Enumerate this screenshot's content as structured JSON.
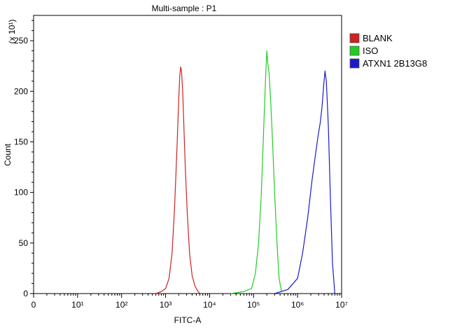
{
  "chart_data": {
    "type": "line",
    "title": "Multi-sample : P1",
    "xlabel": "FITC-A",
    "ylabel": "Count",
    "y_multiplier_label": "(x 10¹)",
    "x_scale": "log",
    "xlim": [
      1,
      10000000
    ],
    "ylim": [
      0,
      275
    ],
    "x_ticks": [
      {
        "value": 1,
        "label": "0"
      },
      {
        "value": 10,
        "label": "10¹"
      },
      {
        "value": 100,
        "label": "10²"
      },
      {
        "value": 1000,
        "label": "10³"
      },
      {
        "value": 10000,
        "label": "10⁴"
      },
      {
        "value": 100000,
        "label": "10⁵"
      },
      {
        "value": 1000000,
        "label": "10⁶"
      },
      {
        "value": 10000000,
        "label": "10⁷"
      }
    ],
    "y_ticks": [
      0,
      50,
      100,
      150,
      200,
      250
    ],
    "grid": false,
    "legend_position": "right-top",
    "series": [
      {
        "name": "BLANK",
        "color": "#cc2222",
        "x": [
          600,
          800,
          1000,
          1200,
          1400,
          1600,
          1800,
          2000,
          2100,
          2200,
          2300,
          2450,
          2600,
          2800,
          3100,
          3500,
          4000,
          4600,
          5300,
          6000
        ],
        "y": [
          0,
          2,
          5,
          15,
          40,
          85,
          140,
          195,
          215,
          224,
          220,
          200,
          165,
          125,
          80,
          40,
          18,
          8,
          3,
          0
        ]
      },
      {
        "name": "ISO",
        "color": "#22cc22",
        "x": [
          30000,
          60000,
          90000,
          110000,
          130000,
          150000,
          170000,
          190000,
          200000,
          210000,
          225000,
          245000,
          270000,
          300000,
          340000,
          380000,
          430000
        ],
        "y": [
          0,
          2,
          5,
          20,
          50,
          100,
          165,
          220,
          240,
          228,
          218,
          190,
          150,
          100,
          50,
          15,
          2
        ]
      },
      {
        "name": "ATXN1 2B13G8",
        "color": "#1a1acc",
        "x": [
          300000,
          600000,
          1000000,
          1300000,
          1700000,
          2100000,
          2500000,
          2900000,
          3300000,
          3600000,
          3900000,
          4200000,
          4500000,
          5000000,
          5600000,
          6200000,
          7000000
        ],
        "y": [
          0,
          4,
          15,
          40,
          75,
          110,
          135,
          155,
          170,
          185,
          205,
          220,
          210,
          165,
          90,
          30,
          0
        ]
      }
    ]
  }
}
